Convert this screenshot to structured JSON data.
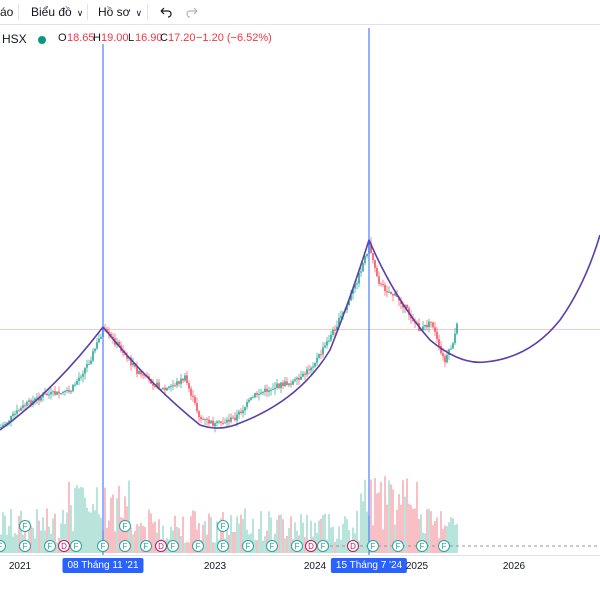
{
  "toolbar": {
    "item1_label": "áo",
    "item2_label": "Biểu đồ",
    "item3_label": "Hồ sơ",
    "undo_icon": "undo-icon",
    "redo_icon": "redo-icon"
  },
  "legend": {
    "symbol": "HSX",
    "open_key": "O",
    "open_val": "18.65",
    "high_key": "H",
    "high_val": "19.00",
    "low_key": "L",
    "low_val": "16.90",
    "close_key": "C",
    "close_val": "17.20",
    "change": "−1.20 (−6.52%)",
    "status_color": "#089981"
  },
  "colors": {
    "up": "#089981",
    "down": "#f23645",
    "curve": "#5b3fa6",
    "marker": "#2962ff"
  },
  "time_axis": {
    "labels": [
      "2021",
      "2023",
      "2024",
      "2025",
      "2026"
    ],
    "highlight1": "08 Tháng 11 '21",
    "highlight2": "15 Tháng 7 '24"
  },
  "events": {
    "f": "F",
    "d": "D"
  }
}
